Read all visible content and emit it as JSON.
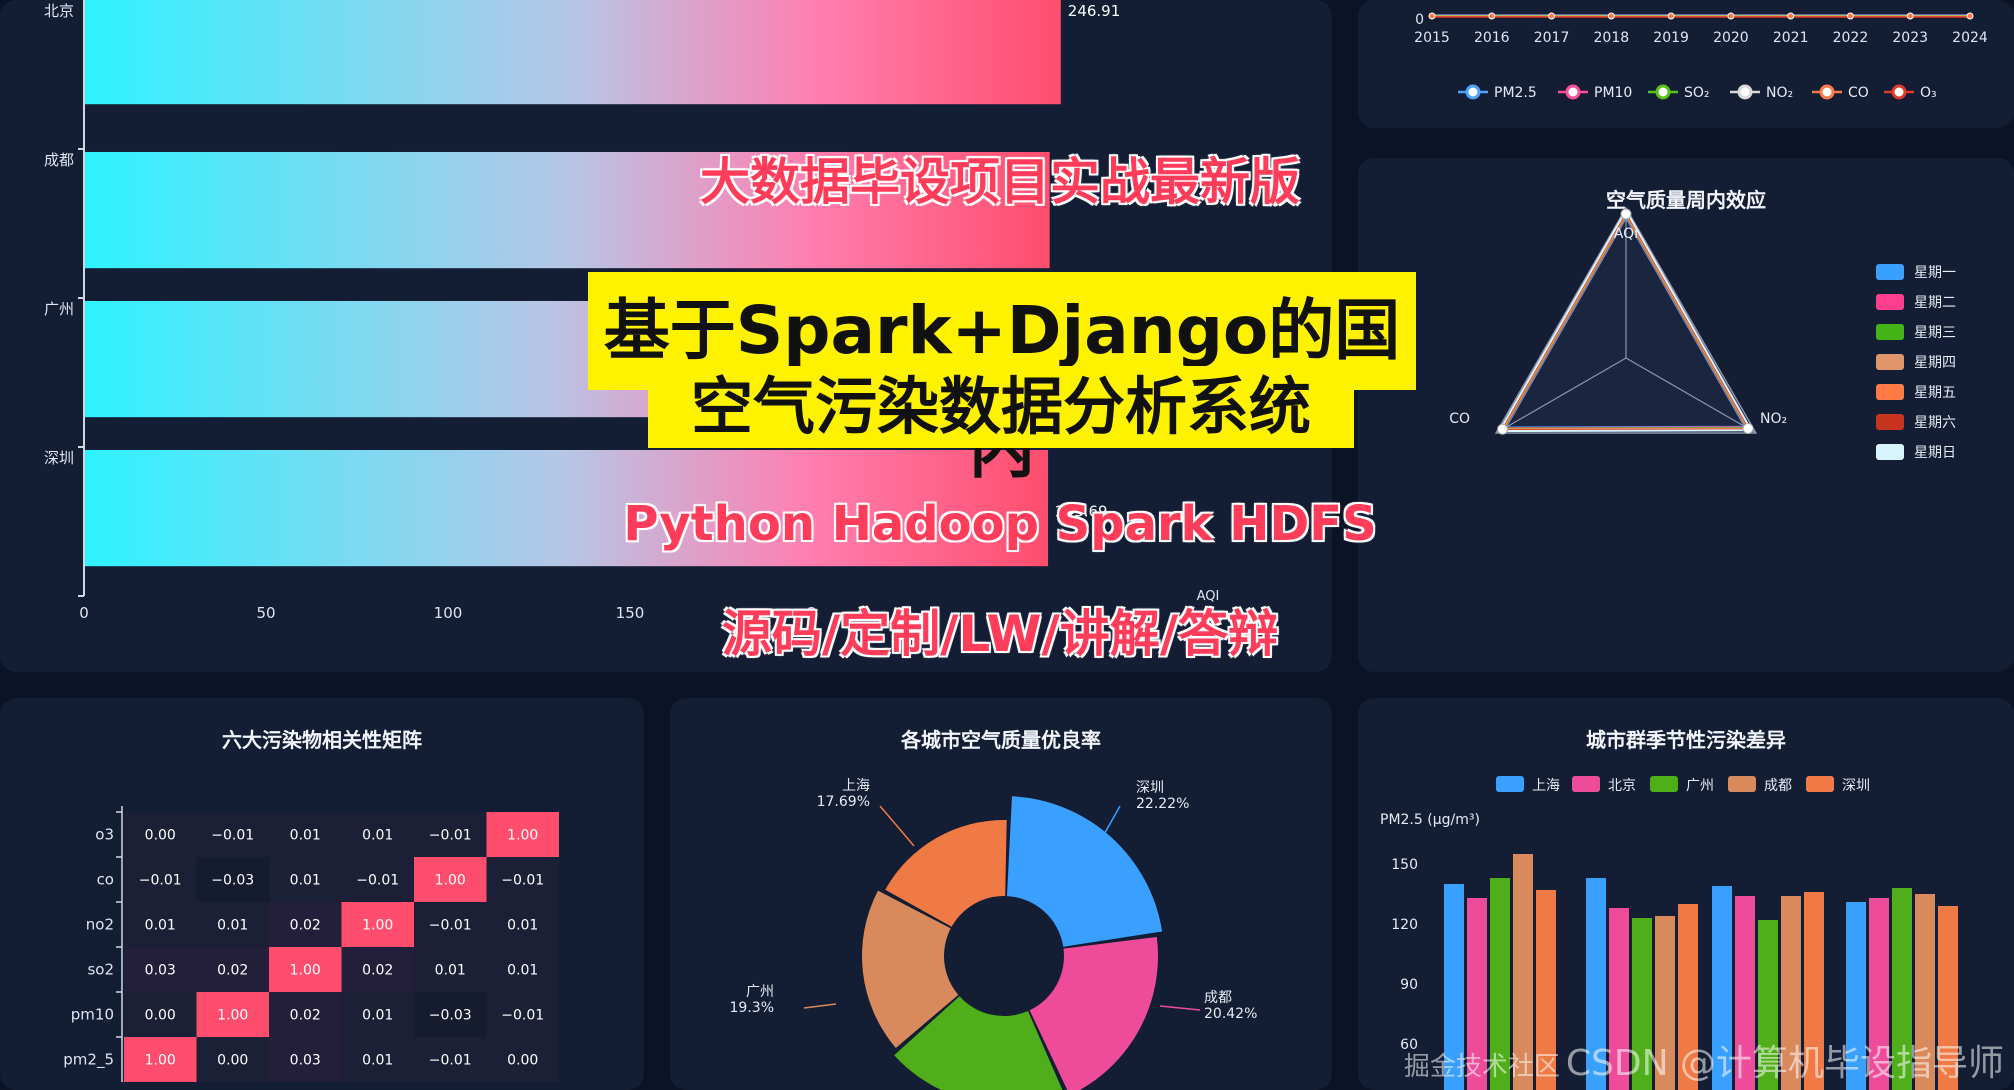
{
  "overlay": {
    "line1": "大数据毕设项目实战最新版",
    "title_line1": "基于Spark+Django的国内",
    "title_line2": "空气污染数据分析系统",
    "tech": "Python Hadoop Spark HDFS",
    "services": "源码/定制/LW/讲解/答辩",
    "watermark": "CSDN @计算机毕设指导师",
    "watermark_tail": "掘金技术社区"
  },
  "chart_data": [
    {
      "type": "bar",
      "orientation": "horizontal",
      "categories": [
        "北京",
        "成都",
        "广州",
        "深圳"
      ],
      "values": [
        246.91,
        244.1,
        233.3,
        243.69
      ],
      "value_labels": [
        "246.91",
        "",
        "",
        "243.69"
      ],
      "xlim": [
        0,
        250
      ],
      "xticks": [
        "0",
        "50",
        "100",
        "150",
        "2"
      ],
      "xlabel": "AQI",
      "colors": [
        "#2ef3ff",
        "#ff4d6d"
      ]
    },
    {
      "type": "line",
      "x": [
        "2015",
        "2016",
        "2017",
        "2018",
        "2019",
        "2020",
        "2021",
        "2022",
        "2023",
        "2024"
      ],
      "ytick": "0",
      "series": [
        {
          "name": "PM2.5",
          "color": "#4aa3ff"
        },
        {
          "name": "PM10",
          "color": "#ff4f9a"
        },
        {
          "name": "SO₂",
          "color": "#58c21a"
        },
        {
          "name": "NO₂",
          "color": "#d9d9d9"
        },
        {
          "name": "CO",
          "color": "#ff7a45"
        },
        {
          "name": "O₃",
          "color": "#e23a2a"
        }
      ]
    },
    {
      "type": "radar",
      "title": "空气质量周内效应",
      "indicators": [
        "AQI",
        "NO₂",
        "CO"
      ],
      "legend": [
        {
          "name": "星期一",
          "color": "#3aa0ff"
        },
        {
          "name": "星期二",
          "color": "#ff3f8e"
        },
        {
          "name": "星期三",
          "color": "#44b316"
        },
        {
          "name": "星期四",
          "color": "#e0956b"
        },
        {
          "name": "星期五",
          "color": "#ff7a45"
        },
        {
          "name": "星期六",
          "color": "#c8331e"
        },
        {
          "name": "星期日",
          "color": "#d8f4ff"
        }
      ],
      "values": [
        0.96,
        0.94,
        0.95
      ]
    },
    {
      "type": "heatmap",
      "title": "六大污染物相关性矩阵",
      "rows": [
        "o3",
        "co",
        "no2",
        "so2",
        "pm10",
        "pm2_5"
      ],
      "cells": [
        [
          "0.00",
          "−0.01",
          "0.01",
          "0.01",
          "−0.01",
          "1.00"
        ],
        [
          "−0.01",
          "−0.03",
          "0.01",
          "−0.01",
          "1.00",
          "−0.01"
        ],
        [
          "0.01",
          "0.01",
          "0.02",
          "1.00",
          "−0.01",
          "0.01"
        ],
        [
          "0.03",
          "0.02",
          "1.00",
          "0.02",
          "0.01",
          "0.01"
        ],
        [
          "0.00",
          "1.00",
          "0.02",
          "0.01",
          "−0.03",
          "−0.01"
        ],
        [
          "1.00",
          "0.00",
          "0.03",
          "0.01",
          "−0.01",
          "0.00"
        ]
      ],
      "values": [
        [
          0.0,
          -0.01,
          0.01,
          0.01,
          -0.01,
          1.0
        ],
        [
          -0.01,
          -0.03,
          0.01,
          -0.01,
          1.0,
          -0.01
        ],
        [
          0.01,
          0.01,
          0.02,
          1.0,
          -0.01,
          0.01
        ],
        [
          0.03,
          0.02,
          1.0,
          0.02,
          0.01,
          0.01
        ],
        [
          0.0,
          1.0,
          0.02,
          0.01,
          -0.03,
          -0.01
        ],
        [
          1.0,
          0.0,
          0.03,
          0.01,
          -0.01,
          0.0
        ]
      ]
    },
    {
      "type": "pie",
      "title": "各城市空气质量优良率",
      "slices": [
        {
          "name": "深圳",
          "value": 22.22,
          "label": "22.22%",
          "color": "#3aa0ff"
        },
        {
          "name": "成都",
          "value": 20.42,
          "label": "20.42%",
          "color": "#ef4b9b"
        },
        {
          "name": "",
          "value": 20.32,
          "label": "",
          "color": "#4fae1a"
        },
        {
          "name": "广州",
          "value": 19.3,
          "label": "19.3%",
          "color": "#d98a5c"
        },
        {
          "name": "上海",
          "value": 17.69,
          "label": "17.69%",
          "color": "#ef7a45"
        }
      ]
    },
    {
      "type": "bar",
      "title": "城市群季节性污染差异",
      "ylabel": "PM2.5 (μg/m³)",
      "yticks": [
        60,
        90,
        120,
        150
      ],
      "ylim": [
        40,
        160
      ],
      "series": [
        {
          "name": "上海",
          "color": "#3aa0ff"
        },
        {
          "name": "北京",
          "color": "#ef4b9b"
        },
        {
          "name": "广州",
          "color": "#4fae1a"
        },
        {
          "name": "成都",
          "color": "#d98a5c"
        },
        {
          "name": "深圳",
          "color": "#ef7a45"
        }
      ],
      "groups": [
        [
          140,
          133,
          143,
          155,
          137
        ],
        [
          143,
          128,
          123,
          124,
          130
        ],
        [
          139,
          134,
          122,
          134,
          136
        ],
        [
          131,
          133,
          138,
          135,
          129
        ]
      ]
    }
  ]
}
